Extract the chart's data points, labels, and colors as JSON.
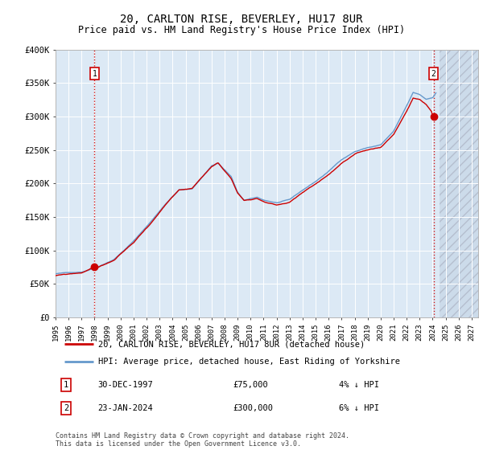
{
  "title": "20, CARLTON RISE, BEVERLEY, HU17 8UR",
  "subtitle": "Price paid vs. HM Land Registry's House Price Index (HPI)",
  "title_fontsize": 10,
  "subtitle_fontsize": 8.5,
  "background_color": "#ffffff",
  "plot_bg_color": "#dce9f5",
  "grid_color": "#ffffff",
  "ylim": [
    0,
    400000
  ],
  "xlim_start": 1995.0,
  "xlim_end": 2027.5,
  "yticks": [
    0,
    50000,
    100000,
    150000,
    200000,
    250000,
    300000,
    350000,
    400000
  ],
  "ytick_labels": [
    "£0",
    "£50K",
    "£100K",
    "£150K",
    "£200K",
    "£250K",
    "£300K",
    "£350K",
    "£400K"
  ],
  "xtick_years": [
    1995,
    1996,
    1997,
    1998,
    1999,
    2000,
    2001,
    2002,
    2003,
    2004,
    2005,
    2006,
    2007,
    2008,
    2009,
    2010,
    2011,
    2012,
    2013,
    2014,
    2015,
    2016,
    2017,
    2018,
    2019,
    2020,
    2021,
    2022,
    2023,
    2024,
    2025,
    2026,
    2027
  ],
  "hpi_color": "#6699cc",
  "price_color": "#cc0000",
  "sale1_date": 1997.99,
  "sale1_price": 75000,
  "sale2_date": 2024.07,
  "sale2_price": 300000,
  "hatch_start": 2024.5,
  "legend_line1": "20, CARLTON RISE, BEVERLEY, HU17 8UR (detached house)",
  "legend_line2": "HPI: Average price, detached house, East Riding of Yorkshire",
  "annotation1_label": "1",
  "annotation1_date": "30-DEC-1997",
  "annotation1_price": "£75,000",
  "annotation1_hpi": "4% ↓ HPI",
  "annotation2_label": "2",
  "annotation2_date": "23-JAN-2024",
  "annotation2_price": "£300,000",
  "annotation2_hpi": "6% ↓ HPI",
  "footnote": "Contains HM Land Registry data © Crown copyright and database right 2024.\nThis data is licensed under the Open Government Licence v3.0."
}
